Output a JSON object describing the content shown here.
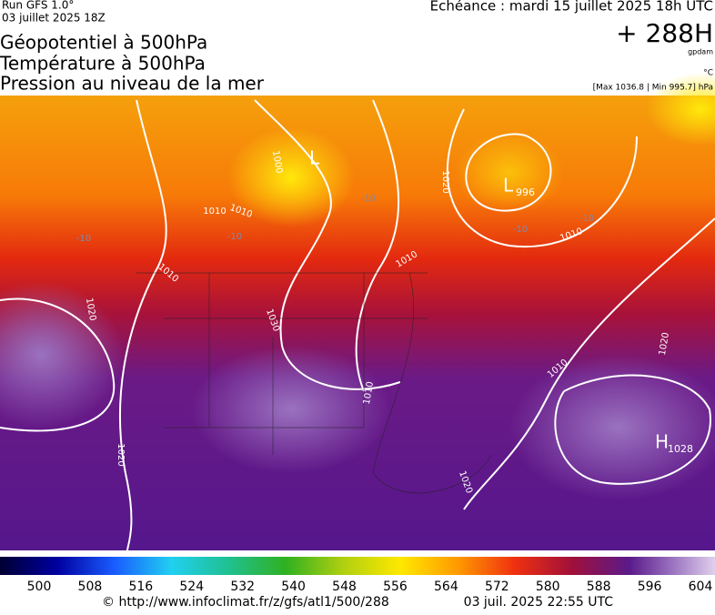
{
  "header": {
    "run": "Run GFS 1.0°",
    "run_date": "03 juillet 2025 18Z",
    "echeance": "Echéance : mardi 15 juillet 2025 18h UTC",
    "lead": "+ 288H",
    "unit": "gpdam",
    "titles": [
      "Géopotentiel à 500hPa",
      "Température à 500hPa",
      "Pression au niveau de la mer"
    ],
    "temp_unit": "°C",
    "range": "[Max 1036.8 | Min 995.7] hPa"
  },
  "map": {
    "pressure_centers": [
      {
        "letter": "L"
      },
      {
        "letter": "L",
        "value": 996
      },
      {
        "letter": "H",
        "value": 1028
      }
    ],
    "isobar_labels": [
      1000,
      1010,
      1010,
      1010,
      1010,
      1020,
      1030,
      1010,
      1010,
      1020,
      1020,
      1020,
      1020,
      1010
    ],
    "temperature_labels": [
      -10,
      -10,
      -10,
      -10,
      -10
    ]
  },
  "colorbar": {
    "ticks": [
      500,
      508,
      516,
      524,
      532,
      540,
      548,
      556,
      564,
      572,
      580,
      588,
      596,
      604
    ]
  },
  "footer": {
    "url": "© http://www.infoclimat.fr/z/gfs/atl1/500/288",
    "timestamp": "03 juil. 2025 22:55 UTC"
  }
}
